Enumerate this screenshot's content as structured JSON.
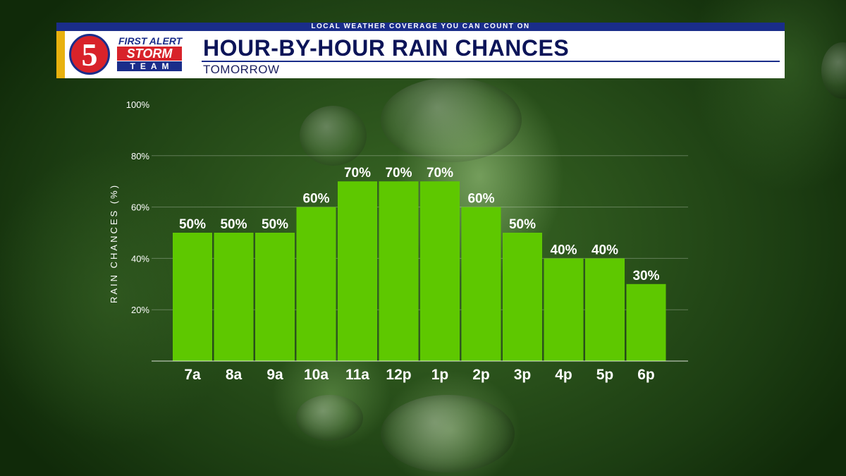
{
  "header": {
    "tagline": "LOCAL WEATHER COVERAGE YOU CAN COUNT ON",
    "title": "HOUR-BY-HOUR RAIN CHANCES",
    "subtitle": "TOMORROW"
  },
  "logo": {
    "number": "5",
    "line1": "FIRST ALERT",
    "line2": "STORM",
    "line3": "TEAM"
  },
  "colors": {
    "bar": "#5ec800",
    "header_blue": "#1a2d8a",
    "accent_yellow": "#e8b10e",
    "logo_red": "#d8232a"
  },
  "chart_data": {
    "type": "bar",
    "categories": [
      "7a",
      "8a",
      "9a",
      "10a",
      "11a",
      "12p",
      "1p",
      "2p",
      "3p",
      "4p",
      "5p",
      "6p"
    ],
    "values": [
      50,
      50,
      50,
      60,
      70,
      70,
      70,
      60,
      50,
      40,
      40,
      30
    ],
    "value_labels": [
      "50%",
      "50%",
      "50%",
      "60%",
      "70%",
      "70%",
      "70%",
      "60%",
      "50%",
      "40%",
      "40%",
      "30%"
    ],
    "ylabel": "RAIN CHANCES (%)",
    "ylim": [
      0,
      100
    ],
    "yticks": [
      20,
      40,
      60,
      80,
      100
    ],
    "ytick_labels": [
      "20%",
      "40%",
      "60%",
      "80%",
      "100%"
    ],
    "grid": true,
    "legend": "none"
  }
}
